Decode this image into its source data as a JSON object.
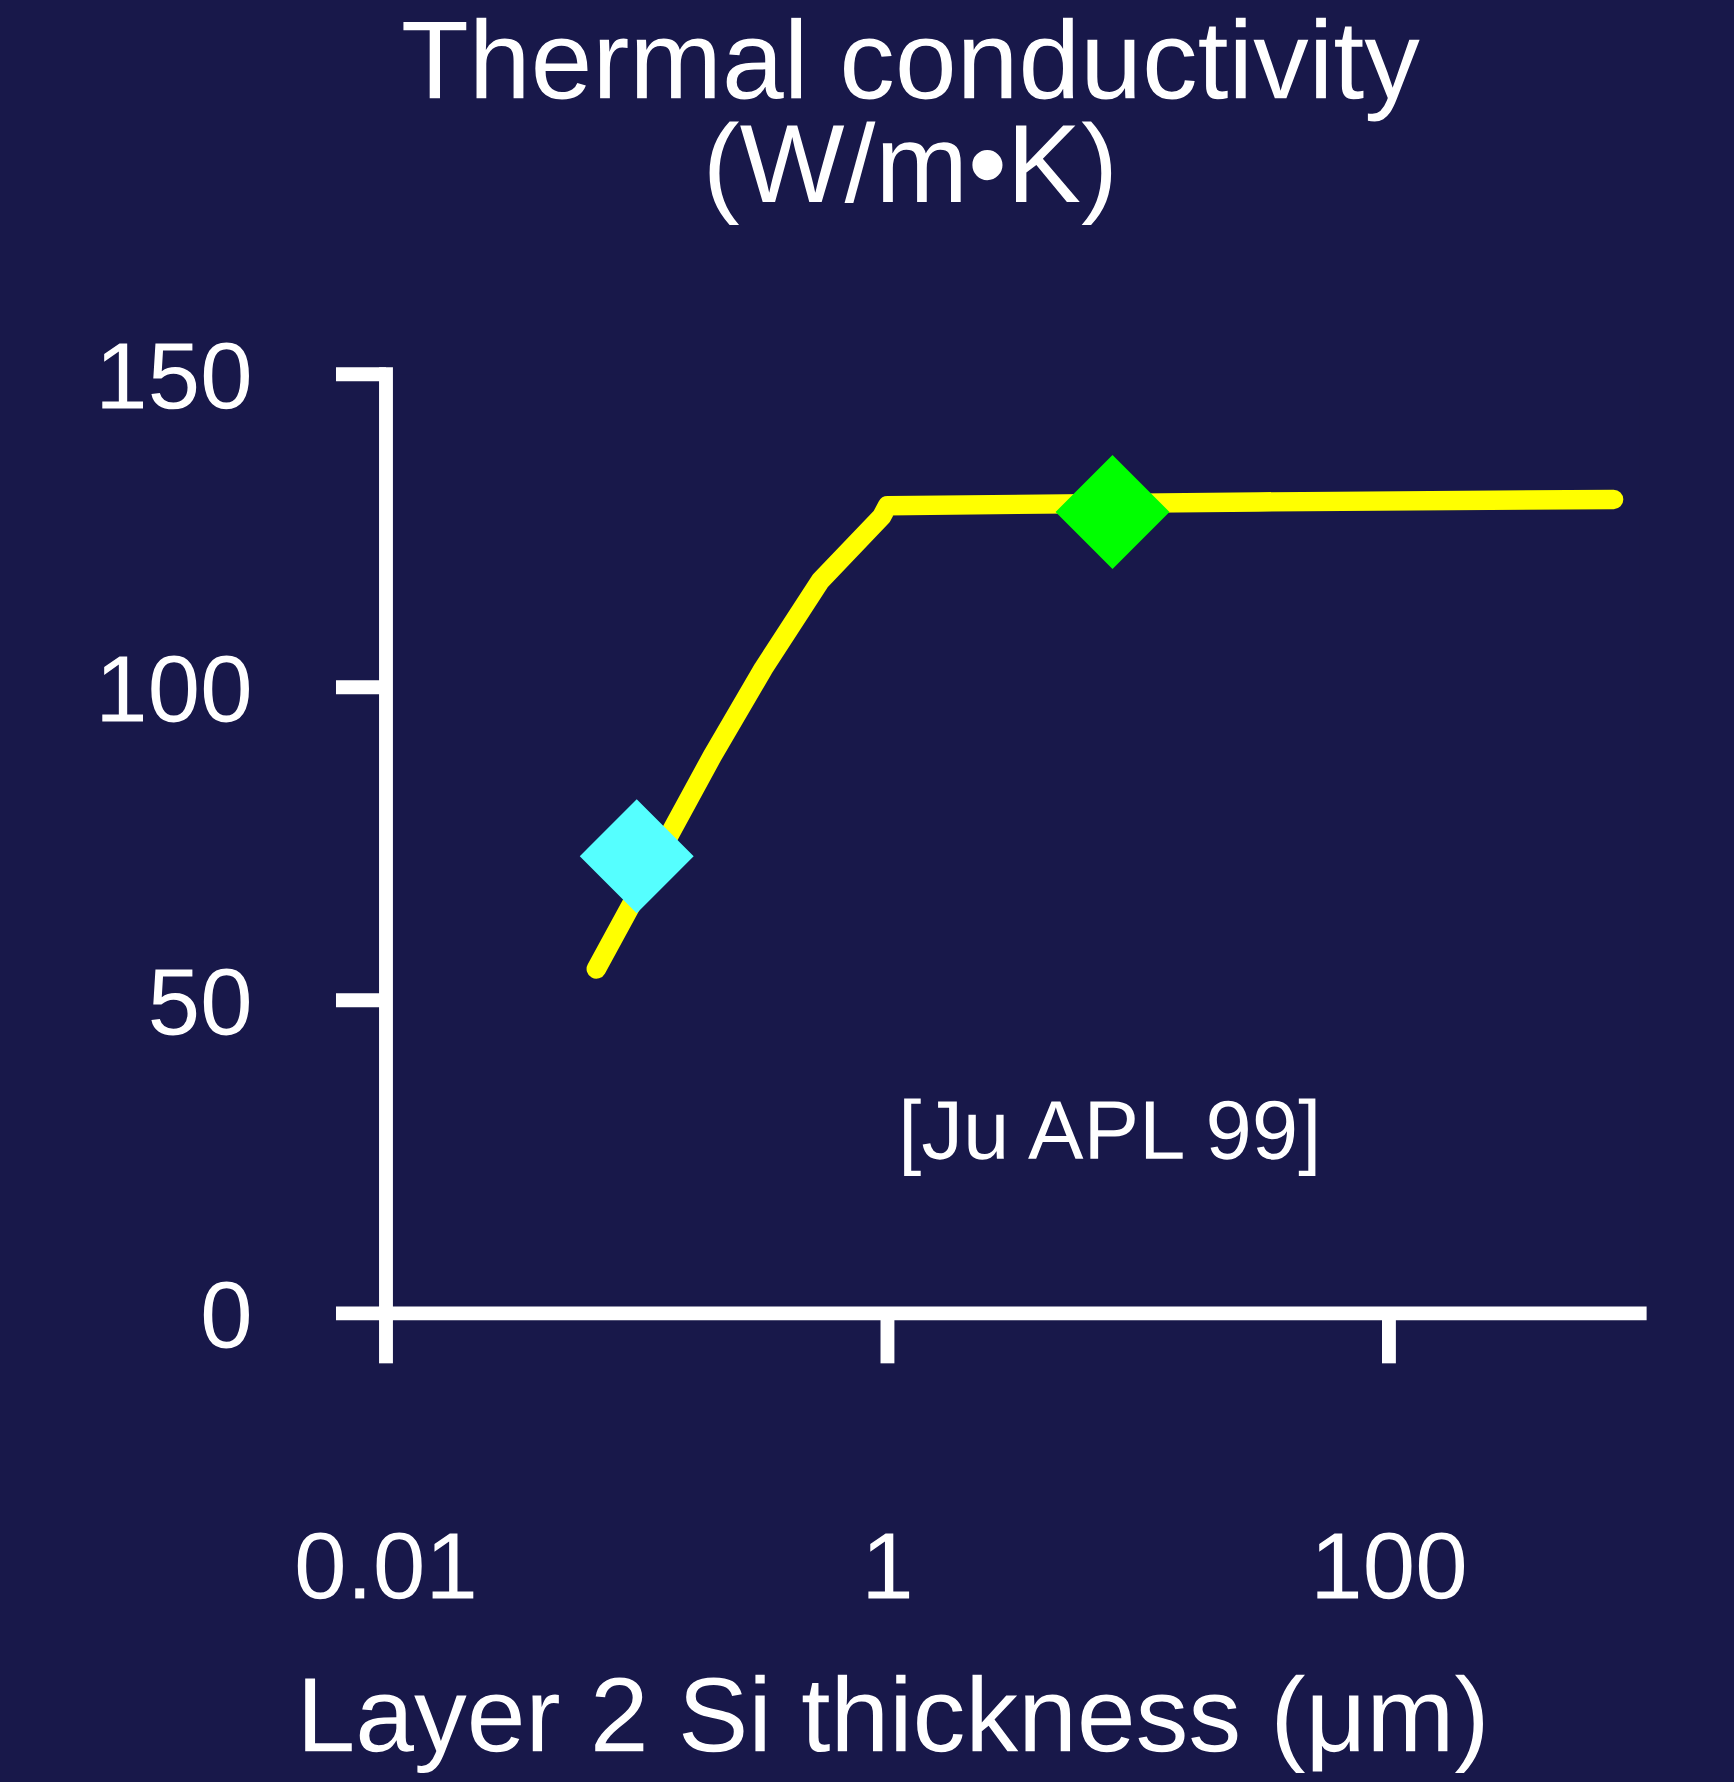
{
  "chart_data": {
    "type": "line",
    "title": "Thermal conductivity\n(W/m•K)",
    "xlabel": "Layer 2 Si thickness (μm)",
    "log": "x",
    "xlim": [
      0.01,
      1000
    ],
    "xticks": [
      0.01,
      1,
      100
    ],
    "ylim": [
      0,
      150
    ],
    "yticks": [
      0,
      50,
      100,
      150
    ],
    "grid": false,
    "legend": false,
    "series": [
      {
        "color": "#ffff00",
        "marker": "none",
        "line_style": "solid",
        "x": [
          0.069,
          0.2,
          0.32,
          0.54,
          0.95,
          1,
          30,
          787
        ],
        "values": [
          55,
          89,
          103,
          117,
          127.3,
          129,
          129.6,
          130
        ]
      },
      {
        "type": "scatter",
        "color": "#55ffff",
        "marker": "diamond",
        "x": [
          0.1
        ],
        "values": [
          73
        ]
      },
      {
        "type": "scatter",
        "color": "#00ff00",
        "marker": "diamond",
        "x": [
          7.9
        ],
        "values": [
          128
        ]
      }
    ],
    "annotations": [
      "[Ju APL 99]"
    ]
  }
}
